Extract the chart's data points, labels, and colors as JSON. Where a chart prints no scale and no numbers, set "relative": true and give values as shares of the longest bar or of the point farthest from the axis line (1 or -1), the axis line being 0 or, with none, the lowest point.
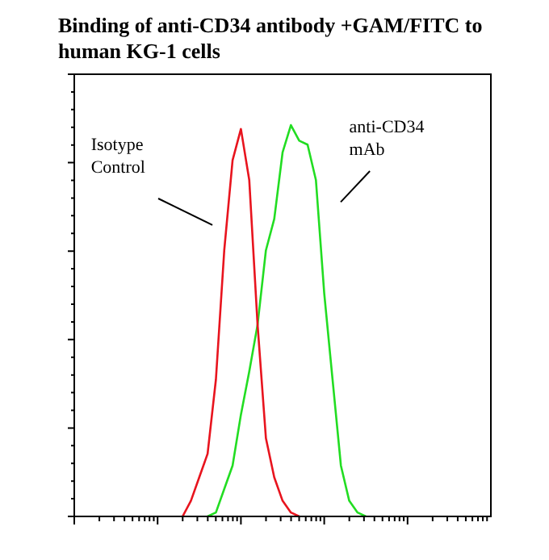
{
  "chart_data": {
    "type": "line",
    "title": "Binding of anti-CD34 antibody +GAM/FITC to human KG-1 cells",
    "relative": true,
    "tick_labels": false,
    "line_style": "solid",
    "annotations": [
      "Isotype Control",
      "anti-CD34 mAb"
    ],
    "categories": [
      null,
      null,
      null,
      null,
      null,
      null,
      null,
      null,
      null,
      null,
      null,
      null,
      null,
      null,
      null,
      null,
      null,
      null,
      null,
      null,
      null,
      null,
      null,
      null,
      null,
      null,
      null,
      null,
      null,
      null,
      null,
      null,
      null,
      null,
      null,
      null,
      null,
      null,
      null,
      null,
      null,
      null,
      null,
      null,
      null,
      null,
      null,
      null,
      null,
      null,
      null
    ],
    "series": [
      {
        "color": "#e8141e",
        "values": [
          null,
          null,
          null,
          null,
          null,
          null,
          null,
          null,
          null,
          null,
          null,
          null,
          null,
          0,
          0.04,
          0.1,
          0.16,
          0.35,
          0.68,
          0.91,
          0.99,
          0.86,
          0.49,
          0.2,
          0.1,
          0.04,
          0.01,
          0,
          null,
          null,
          null,
          null,
          null,
          null,
          null,
          null,
          null,
          null,
          null,
          null,
          null,
          null,
          null,
          null,
          null,
          null,
          null,
          null,
          null,
          null,
          null
        ]
      },
      {
        "color": "#22dd22",
        "values": [
          null,
          null,
          null,
          null,
          null,
          null,
          null,
          null,
          null,
          null,
          null,
          null,
          null,
          null,
          null,
          null,
          0,
          0.01,
          0.07,
          0.13,
          0.26,
          0.37,
          0.49,
          0.68,
          0.76,
          0.93,
          1,
          0.96,
          0.95,
          0.86,
          0.57,
          0.35,
          0.13,
          0.04,
          0.01,
          0,
          null,
          null,
          null,
          null,
          null,
          null,
          null,
          null,
          null,
          null,
          null,
          null,
          null,
          null,
          null
        ]
      }
    ]
  }
}
